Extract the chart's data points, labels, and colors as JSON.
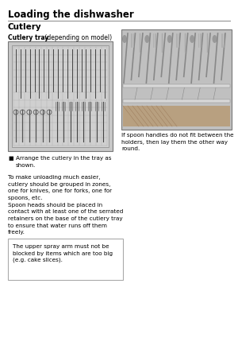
{
  "page_title": "Loading the dishwasher",
  "section_title": "Cutlery",
  "subsection_label_bold": "Cutlery tray",
  "subsection_label_normal": " (depending on model)",
  "bullet_text": "Arrange the cutlery in the tray as\nshown.",
  "para1": "To make unloading much easier,\ncutlery should be grouped in zones,\none for knives, one for forks, one for\nspoons, etc.",
  "para2": "Spoon heads should be placed in\ncontact with at least one of the serrated\nretainers on the base of the cutlery tray\nto ensure that water runs off them\nfreely.",
  "box_text": "The upper spray arm must not be\nblocked by items which are too big\n(e.g. cake slices).",
  "caption_right": "If spoon handles do not fit between the\nholders, then lay them the other way\nround.",
  "bg_color": "#ffffff",
  "text_color": "#000000",
  "fig_w": 3.0,
  "fig_h": 4.25,
  "dpi": 100
}
